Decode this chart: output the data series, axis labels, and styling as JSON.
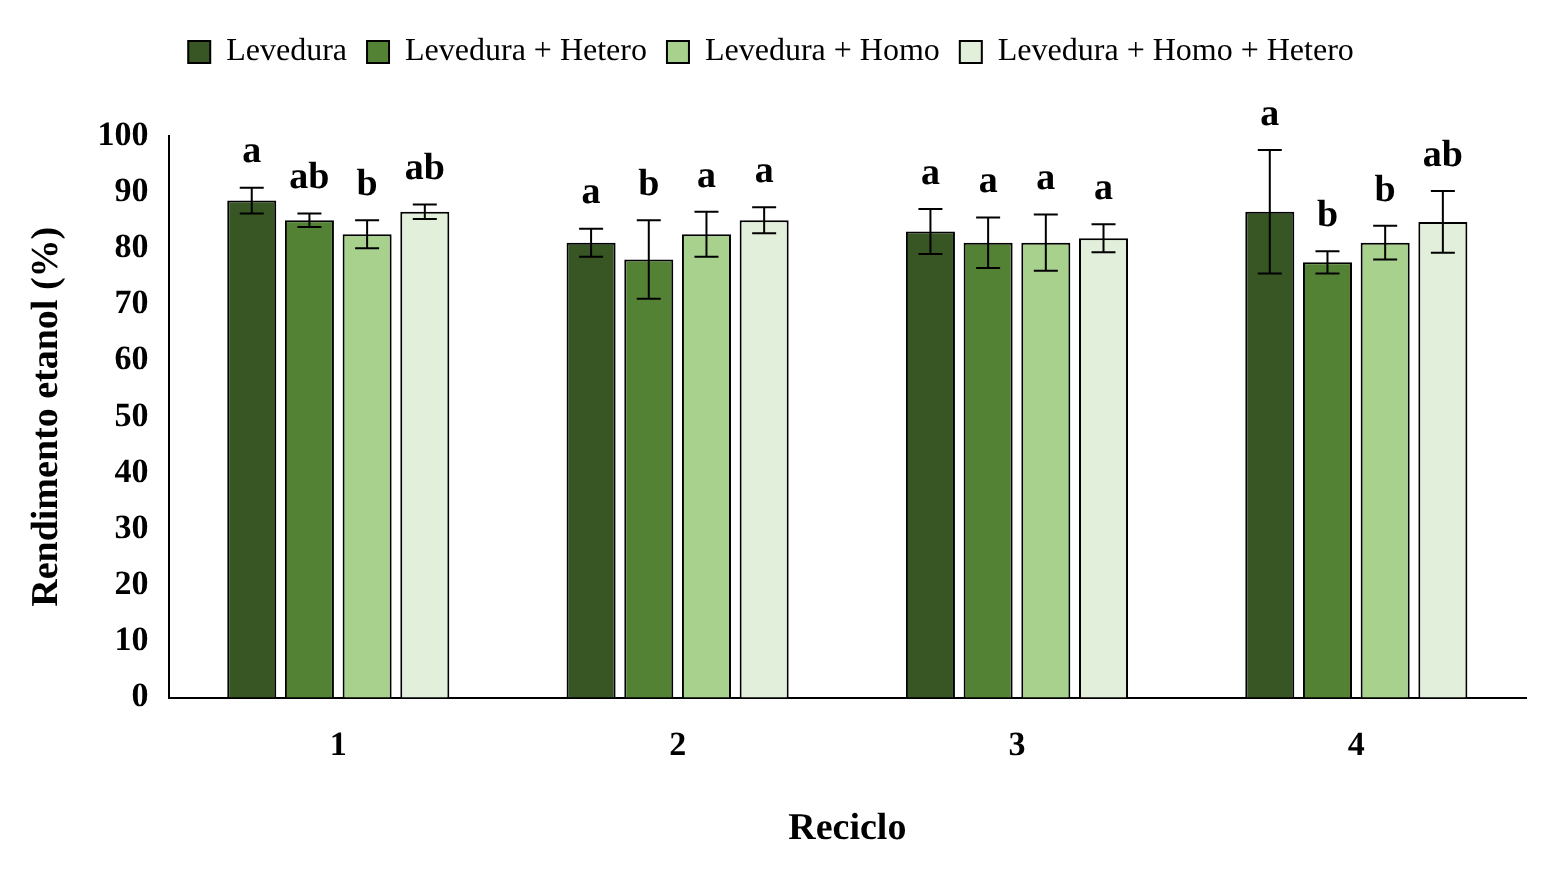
{
  "chart_data": {
    "type": "bar",
    "xlabel": "Reciclo",
    "ylabel": "Rendimento etanol (%)",
    "categories": [
      "1",
      "2",
      "3",
      "4"
    ],
    "series": [
      {
        "name": "Levedura",
        "color": "#375623",
        "values": [
          88.5,
          81,
          83,
          86.5
        ],
        "errors": [
          2.3,
          2.5,
          4,
          11
        ],
        "value_labels": [
          "a",
          "a",
          "a",
          "a"
        ]
      },
      {
        "name": "Levedura + Hetero",
        "color": "#548235",
        "values": [
          85,
          78,
          81,
          77.5
        ],
        "errors": [
          1.2,
          7,
          4.5,
          2
        ],
        "value_labels": [
          "ab",
          "b",
          "a",
          "b"
        ]
      },
      {
        "name": "Levedura + Homo",
        "color": "#a9d18e",
        "values": [
          82.5,
          82.5,
          81,
          81
        ],
        "errors": [
          2.5,
          4,
          5,
          3
        ],
        "value_labels": [
          "b",
          "a",
          "a",
          "b"
        ]
      },
      {
        "name": "Levedura + Homo + Hetero",
        "color": "#e2efda",
        "values": [
          86.5,
          85,
          81.8,
          84.7
        ],
        "errors": [
          1.3,
          2.3,
          2.5,
          5.5
        ],
        "value_labels": [
          "ab",
          "a",
          "a",
          "ab"
        ]
      }
    ],
    "ylim": [
      0,
      100
    ],
    "yticks": [
      0,
      10,
      20,
      30,
      40,
      50,
      60,
      70,
      80,
      90,
      100
    ],
    "grid": false,
    "legend": "top"
  }
}
